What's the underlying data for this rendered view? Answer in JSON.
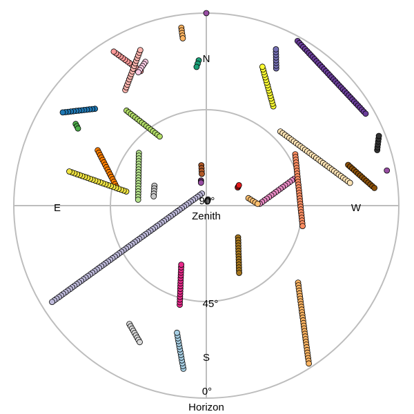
{
  "chart_data": {
    "type": "scatter",
    "projection": "polar sky plot (zenith at centre, horizon at outer ring)",
    "radial_axis": {
      "ticks": [
        {
          "label": "0°",
          "elevation": 0,
          "caption": "Horizon"
        },
        {
          "label": "45°",
          "elevation": 45,
          "caption": ""
        },
        {
          "label": "90°",
          "elevation": 90,
          "caption": "Zenith"
        }
      ]
    },
    "directions": [
      "N",
      "E",
      "S",
      "W"
    ],
    "east_on_left": true,
    "grid": true,
    "legend": "none",
    "series": [
      {
        "color": "#bebada",
        "start": {
          "az": 20,
          "el": 84
        },
        "end": {
          "az": 122,
          "el": 5
        }
      },
      {
        "color": "#ff7f00",
        "start": {
          "az": 63,
          "el": 33
        },
        "end": {
          "az": 78,
          "el": 47
        }
      },
      {
        "color": "#c8c8c8",
        "start": {
          "az": 69,
          "el": 64
        },
        "end": {
          "az": 80,
          "el": 65
        }
      },
      {
        "color": "#1f78b4",
        "start": {
          "az": 49,
          "el": 21
        },
        "end": {
          "az": 57,
          "el": 10
        }
      },
      {
        "color": "#fdb462",
        "start": {
          "az": 8,
          "el": 6
        },
        "end": {
          "az": 8,
          "el": 11
        }
      },
      {
        "color": "#fb9a99",
        "start": {
          "az": 26,
          "el": 20
        },
        "end": {
          "az": 31,
          "el": 6
        }
      },
      {
        "color": "#fccde5",
        "start": {
          "az": 23,
          "el": 17
        },
        "end": {
          "az": 27,
          "el": 20
        }
      },
      {
        "color": "#b2df8a",
        "start": {
          "az": 52,
          "el": 50
        },
        "end": {
          "az": 85,
          "el": 58
        }
      },
      {
        "color": "#e7298a",
        "start": {
          "az": 165,
          "el": 42
        },
        "end": {
          "az": 157,
          "el": 60
        }
      },
      {
        "color": "#a6cee3",
        "start": {
          "az": 172,
          "el": 13
        },
        "end": {
          "az": 167,
          "el": 29
        }
      },
      {
        "color": "#b3de69",
        "start": {
          "az": 40,
          "el": 32
        },
        "end": {
          "az": 34,
          "el": 51
        }
      },
      {
        "color": "#fbb4ae",
        "start": {
          "az": 35,
          "el": 24
        },
        "end": {
          "az": 23,
          "el": 11
        }
      },
      {
        "color": "#d9d9d9",
        "start": {
          "az": 147,
          "el": 24
        },
        "end": {
          "az": 154,
          "el": 19
        }
      },
      {
        "color": "#4daf4a",
        "start": {
          "az": 58,
          "el": 18
        },
        "end": {
          "az": 59,
          "el": 20
        }
      },
      {
        "color": "#a6761d",
        "start": {
          "az": 225,
          "el": 69
        },
        "end": {
          "az": 206,
          "el": 55
        }
      },
      {
        "color": "#fdb462",
        "start": {
          "az": 230,
          "el": 34
        },
        "end": {
          "az": 213,
          "el": 2
        }
      },
      {
        "color": "#ffff33",
        "start": {
          "az": 326,
          "el": 34
        },
        "end": {
          "az": 338,
          "el": 20
        }
      },
      {
        "color": "#7570b3",
        "start": {
          "az": 333,
          "el": 18
        },
        "end": {
          "az": 336,
          "el": 10
        }
      },
      {
        "color": "#6a3d9a",
        "start": {
          "az": 331,
          "el": 2
        },
        "end": {
          "az": 300,
          "el": 4
        }
      },
      {
        "color": "#f0e442",
        "start": {
          "az": 80,
          "el": 52
        },
        "end": {
          "az": 76,
          "el": 24
        }
      },
      {
        "color": "#ffe4b5",
        "start": {
          "az": 315,
          "el": 41
        },
        "end": {
          "az": 279,
          "el": 22
        }
      },
      {
        "color": "#333333",
        "start": {
          "az": 288,
          "el": 6
        },
        "end": {
          "az": 292,
          "el": 3
        }
      },
      {
        "color": "#8c510a",
        "start": {
          "az": 286,
          "el": 21
        },
        "end": {
          "az": 276,
          "el": 11
        }
      },
      {
        "color": "#e78ac3",
        "start": {
          "az": 287,
          "el": 47
        },
        "end": {
          "az": 272,
          "el": 65
        }
      },
      {
        "color": "#1b9e77",
        "start": {
          "az": 3,
          "el": 22
        },
        "end": {
          "az": 4,
          "el": 25
        }
      },
      {
        "color": "#fc8d62",
        "start": {
          "az": 300,
          "el": 42
        },
        "end": {
          "az": 258,
          "el": 44
        }
      },
      {
        "color": "#b15928",
        "start": {
          "az": 7,
          "el": 71
        },
        "end": {
          "az": 8,
          "el": 75
        }
      },
      {
        "color": "#fdbf6f",
        "start": {
          "az": 280,
          "el": 70
        },
        "end": {
          "az": 272,
          "el": 66
        }
      },
      {
        "color": "#e31a1c",
        "start": {
          "az": 300,
          "el": 73
        },
        "end": {
          "az": 302,
          "el": 72
        }
      },
      {
        "color": "#984ea3",
        "start": {
          "az": 12,
          "el": 78
        },
        "end": {
          "az": 13,
          "el": 79
        }
      },
      {
        "color": "#666666",
        "start": {
          "az": 345,
          "el": 87
        },
        "end": {
          "az": 346,
          "el": 88
        }
      }
    ],
    "single_points": [
      {
        "color": "#984ea3",
        "az": 0,
        "el": 0
      },
      {
        "color": "#984ea3",
        "az": 281,
        "el": 4
      }
    ]
  }
}
